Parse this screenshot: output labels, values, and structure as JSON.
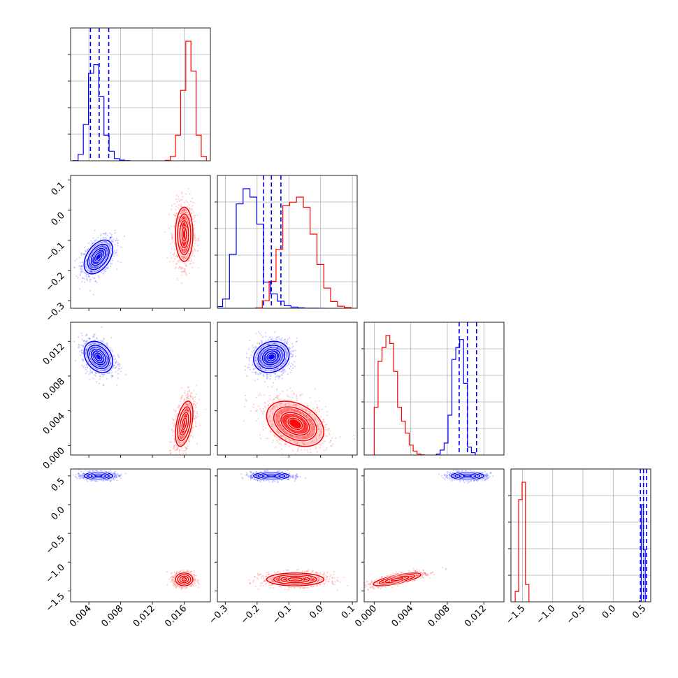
{
  "chart_data": {
    "type": "corner",
    "title": "",
    "grid": true,
    "legend": "none",
    "colors": {
      "blue": "#0000ff",
      "red": "#ff0000",
      "frame": "#222222",
      "grid": "#b0b0b0"
    },
    "parameters": [
      {
        "range": [
          0.0017,
          0.0193
        ],
        "ticks": [
          0.004,
          0.008,
          0.012,
          0.016
        ],
        "tick_labels": [
          "0.004",
          "0.008",
          "0.012",
          "0.016"
        ]
      },
      {
        "range": [
          -0.325,
          0.115
        ],
        "ticks": [
          -0.3,
          -0.2,
          -0.1,
          0.0,
          0.1
        ],
        "tick_labels": [
          "−0.3",
          "−0.2",
          "−0.1",
          "0.0",
          "0.1"
        ]
      },
      {
        "range": [
          -0.0011,
          0.0142
        ],
        "ticks": [
          0.0,
          0.004,
          0.008,
          0.012
        ],
        "tick_labels": [
          "0.000",
          "0.004",
          "0.008",
          "0.012"
        ]
      },
      {
        "range": [
          -1.69,
          0.62
        ],
        "ticks": [
          -1.5,
          -1.0,
          -0.5,
          0.0,
          0.5
        ],
        "tick_labels": [
          "−1.5",
          "−1.0",
          "−0.5",
          "0.0",
          "0.5"
        ]
      }
    ],
    "series": [
      {
        "color": "#0000ff",
        "mean": [
          0.0052,
          -0.155,
          0.0102,
          0.5
        ],
        "std": [
          0.0009,
          0.028,
          0.0009,
          0.03
        ],
        "corr": {
          "0-1": 0.45,
          "0-2": -0.3,
          "0-3": 0.0,
          "1-2": 0.15,
          "1-3": 0.0,
          "2-3": 0.0
        },
        "quantiles": [
          [
            0.0042,
            0.0053,
            0.0065
          ],
          [
            -0.18,
            -0.155,
            -0.125
          ],
          [
            0.0093,
            0.0102,
            0.0112
          ],
          [
            0.45,
            0.5,
            0.55
          ]
        ],
        "histograms": [
          {
            "edges_from": 0.002,
            "bin_width": 0.00065,
            "counts": [
              1,
              30,
              170,
              410,
              450,
              300,
              120,
              45,
              10,
              3,
              1
            ]
          },
          {
            "edges_from": -0.33,
            "bin_width": 0.0215,
            "counts": [
              10,
              55,
              320,
              620,
              710,
              660,
              500,
              155,
              85,
              42,
              15,
              7,
              3,
              1,
              1,
              0
            ]
          },
          {
            "edges_from": 0.0068,
            "bin_width": 0.000426,
            "counts": [
              5,
              25,
              60,
              200,
              480,
              540,
              580,
              360,
              40,
              12
            ]
          },
          {
            "edges_from": 0.43,
            "bin_width": 0.0333,
            "counts": [
              5,
              560,
              300
            ]
          }
        ]
      },
      {
        "color": "#ff0000",
        "mean": [
          0.016,
          -0.08,
          0.0025,
          -1.3
        ],
        "std": [
          0.00055,
          0.045,
          0.0013,
          0.055
        ],
        "corr": {
          "0-1": 0.0,
          "0-2": 0.45,
          "0-3": 0.0,
          "1-2": -0.35,
          "1-3": 0.0,
          "2-3": 0.75
        },
        "quantiles": [],
        "histograms": [
          {
            "edges_from": 0.0136,
            "bin_width": 0.00065,
            "counts": [
              2,
              20,
              120,
              330,
              560,
              420,
              120,
              20
            ]
          },
          {
            "edges_from": -0.205,
            "bin_width": 0.0215,
            "counts": [
              2,
              45,
              160,
              350,
              610,
              630,
              660,
              600,
              440,
              260,
              120,
              40,
              12,
              4
            ]
          },
          {
            "edges_from": 0.0,
            "bin_width": 0.000426,
            "counts": [
              240,
              470,
              540,
              600,
              560,
              420,
              240,
              170,
              110,
              50,
              20,
              5,
              1
            ]
          },
          {
            "edges_from": -1.62,
            "bin_width": 0.0567,
            "counts": [
              60,
              590,
              690,
              100
            ]
          }
        ]
      }
    ]
  }
}
